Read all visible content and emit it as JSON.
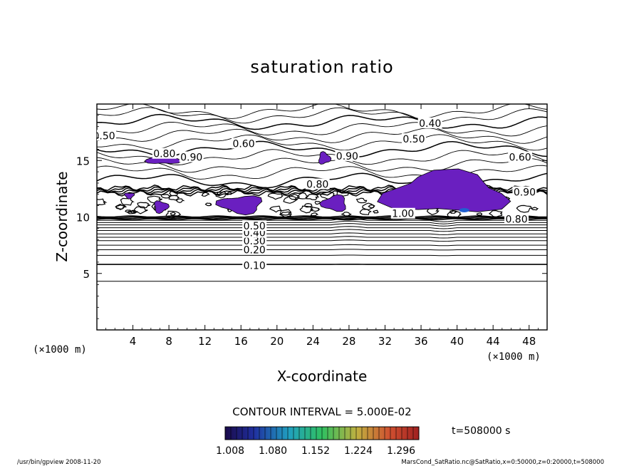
{
  "chart_data": {
    "type": "contour",
    "title": "saturation ratio",
    "xlabel": "X-coordinate",
    "ylabel": "Z-coordinate",
    "x_unit_label": "(×1000 m)",
    "z_unit_label": "(×1000 m)",
    "xlim": [
      0,
      50
    ],
    "ylim": [
      0,
      20
    ],
    "x_ticks": [
      4,
      8,
      12,
      16,
      20,
      24,
      28,
      32,
      36,
      40,
      44,
      48
    ],
    "y_ticks": [
      5,
      10,
      15
    ],
    "contour_interval_text": "CONTOUR INTERVAL = 5.000E-02",
    "contour_levels_labeled": [
      {
        "label": "0.10",
        "x": 17.5,
        "z": 5.7
      },
      {
        "label": "0.20",
        "x": 17.5,
        "z": 7.1
      },
      {
        "label": "0.30",
        "x": 17.5,
        "z": 7.9
      },
      {
        "label": "0.40",
        "x": 17.5,
        "z": 8.6
      },
      {
        "label": "0.50",
        "x": 17.5,
        "z": 9.2
      },
      {
        "label": "0.40",
        "x": 37.0,
        "z": 18.3
      },
      {
        "label": "0.50",
        "x": 35.2,
        "z": 16.9
      },
      {
        "label": "0.50",
        "x": 0.8,
        "z": 17.2
      },
      {
        "label": "0.60",
        "x": 16.3,
        "z": 16.5
      },
      {
        "label": "0.80",
        "x": 7.5,
        "z": 15.6
      },
      {
        "label": "0.90",
        "x": 10.5,
        "z": 15.3
      },
      {
        "label": "0.90",
        "x": 27.8,
        "z": 15.4
      },
      {
        "label": "0.80",
        "x": 24.5,
        "z": 12.9
      },
      {
        "label": "0.90",
        "x": 47.5,
        "z": 12.2
      },
      {
        "label": "0.60",
        "x": 47.0,
        "z": 15.3
      },
      {
        "label": "0.80",
        "x": 46.6,
        "z": 9.8
      },
      {
        "label": "1.00",
        "x": 34.0,
        "z": 10.3
      }
    ],
    "shaded_regions": {
      "description_levels": [
        1.0,
        1.3
      ],
      "regions": [
        {
          "x": [
            5.2,
            9.5
          ],
          "z": [
            14.6,
            15.6
          ]
        },
        {
          "x": [
            24.5,
            26.0
          ],
          "z": [
            14.6,
            15.8
          ]
        },
        {
          "x": [
            6.2,
            8.0
          ],
          "z": [
            10.3,
            11.5
          ]
        },
        {
          "x": [
            3.0,
            4.2
          ],
          "z": [
            11.6,
            12.2
          ]
        },
        {
          "x": [
            13.2,
            18.8
          ],
          "z": [
            10.2,
            12.0
          ]
        },
        {
          "x": [
            24.8,
            28.0
          ],
          "z": [
            10.4,
            12.0
          ]
        },
        {
          "x": [
            31.0,
            46.5
          ],
          "z": [
            10.0,
            14.2
          ]
        }
      ]
    },
    "colorbar": {
      "min": 1.008,
      "max": 1.296,
      "tick_labels": [
        "1.008",
        "1.080",
        "1.152",
        "1.224",
        "1.296"
      ],
      "colors": [
        "#1a0a4a",
        "#2030a0",
        "#20a0c0",
        "#30c060",
        "#c0b040",
        "#d05030",
        "#a02020"
      ]
    },
    "time_label": "t=508000 s"
  },
  "footer": {
    "left": "/usr/bin/gpview  2008-11-20",
    "right": "MarsCond_SatRatio.nc@SatRatio,x=0:50000,z=0:20000,t=508000"
  },
  "colors": {
    "shade": "#6a1fc0",
    "shade_dark": "#3a2a9a",
    "shade_hot": "#2060d0"
  }
}
